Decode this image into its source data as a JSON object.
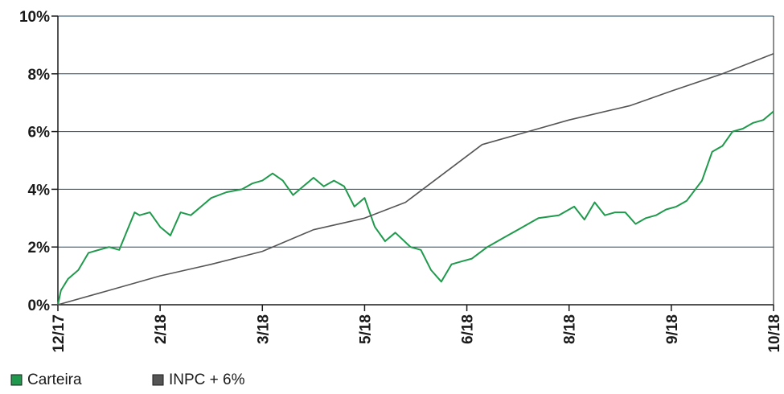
{
  "chart_data": {
    "type": "line",
    "title": "",
    "xlabel": "",
    "ylabel": "",
    "ylim": [
      0,
      10
    ],
    "y_ticks": [
      "0%",
      "2%",
      "4%",
      "6%",
      "8%",
      "10%"
    ],
    "y_tick_values": [
      0,
      2,
      4,
      6,
      8,
      10
    ],
    "x_tick_labels": [
      "12/17",
      "2/18",
      "3/18",
      "5/18",
      "6/18",
      "8/18",
      "9/18",
      "10/18"
    ],
    "x_tick_values": [
      0,
      1,
      2,
      3,
      4,
      5,
      6,
      7
    ],
    "grid": "horizontal",
    "legend_position": "bottom-left",
    "series": [
      {
        "name": "Carteira",
        "color": "#1f9a4c",
        "x": [
          0,
          0.03,
          0.1,
          0.2,
          0.3,
          0.5,
          0.6,
          0.68,
          0.75,
          0.8,
          0.9,
          1.0,
          1.1,
          1.2,
          1.3,
          1.5,
          1.65,
          1.8,
          1.9,
          2.0,
          2.1,
          2.2,
          2.3,
          2.4,
          2.5,
          2.6,
          2.7,
          2.8,
          2.9,
          3.0,
          3.1,
          3.2,
          3.3,
          3.45,
          3.55,
          3.65,
          3.75,
          3.85,
          3.95,
          4.05,
          4.2,
          4.35,
          4.5,
          4.7,
          4.9,
          5.05,
          5.15,
          5.25,
          5.35,
          5.45,
          5.55,
          5.65,
          5.75,
          5.85,
          5.95,
          6.05,
          6.15,
          6.3,
          6.4,
          6.5,
          6.6,
          6.7,
          6.8,
          6.9,
          7.0
        ],
        "y": [
          0,
          0.5,
          0.9,
          1.2,
          1.8,
          2.0,
          1.9,
          2.6,
          3.2,
          3.1,
          3.2,
          2.7,
          2.4,
          3.2,
          3.1,
          3.7,
          3.9,
          4.0,
          4.2,
          4.3,
          4.55,
          4.3,
          3.8,
          4.1,
          4.4,
          4.1,
          4.3,
          4.1,
          3.4,
          3.7,
          2.7,
          2.2,
          2.5,
          2.0,
          1.9,
          1.2,
          0.8,
          1.4,
          1.5,
          1.6,
          2.0,
          2.3,
          2.6,
          3.0,
          3.1,
          3.4,
          2.95,
          3.55,
          3.1,
          3.2,
          3.2,
          2.8,
          3.0,
          3.1,
          3.3,
          3.4,
          3.6,
          4.3,
          5.3,
          5.5,
          6.0,
          6.1,
          6.3,
          6.4,
          6.7
        ]
      },
      {
        "name": "INPC + 6%",
        "color": "#555555",
        "x": [
          0,
          0.5,
          1.0,
          1.5,
          2.0,
          2.5,
          3.0,
          3.4,
          4.15,
          4.6,
          5.0,
          5.6,
          6.0,
          6.5,
          7.0
        ],
        "y": [
          0,
          0.5,
          1.0,
          1.4,
          1.85,
          2.6,
          3.0,
          3.55,
          5.55,
          6.0,
          6.4,
          6.9,
          7.4,
          8.0,
          8.7
        ]
      }
    ]
  }
}
